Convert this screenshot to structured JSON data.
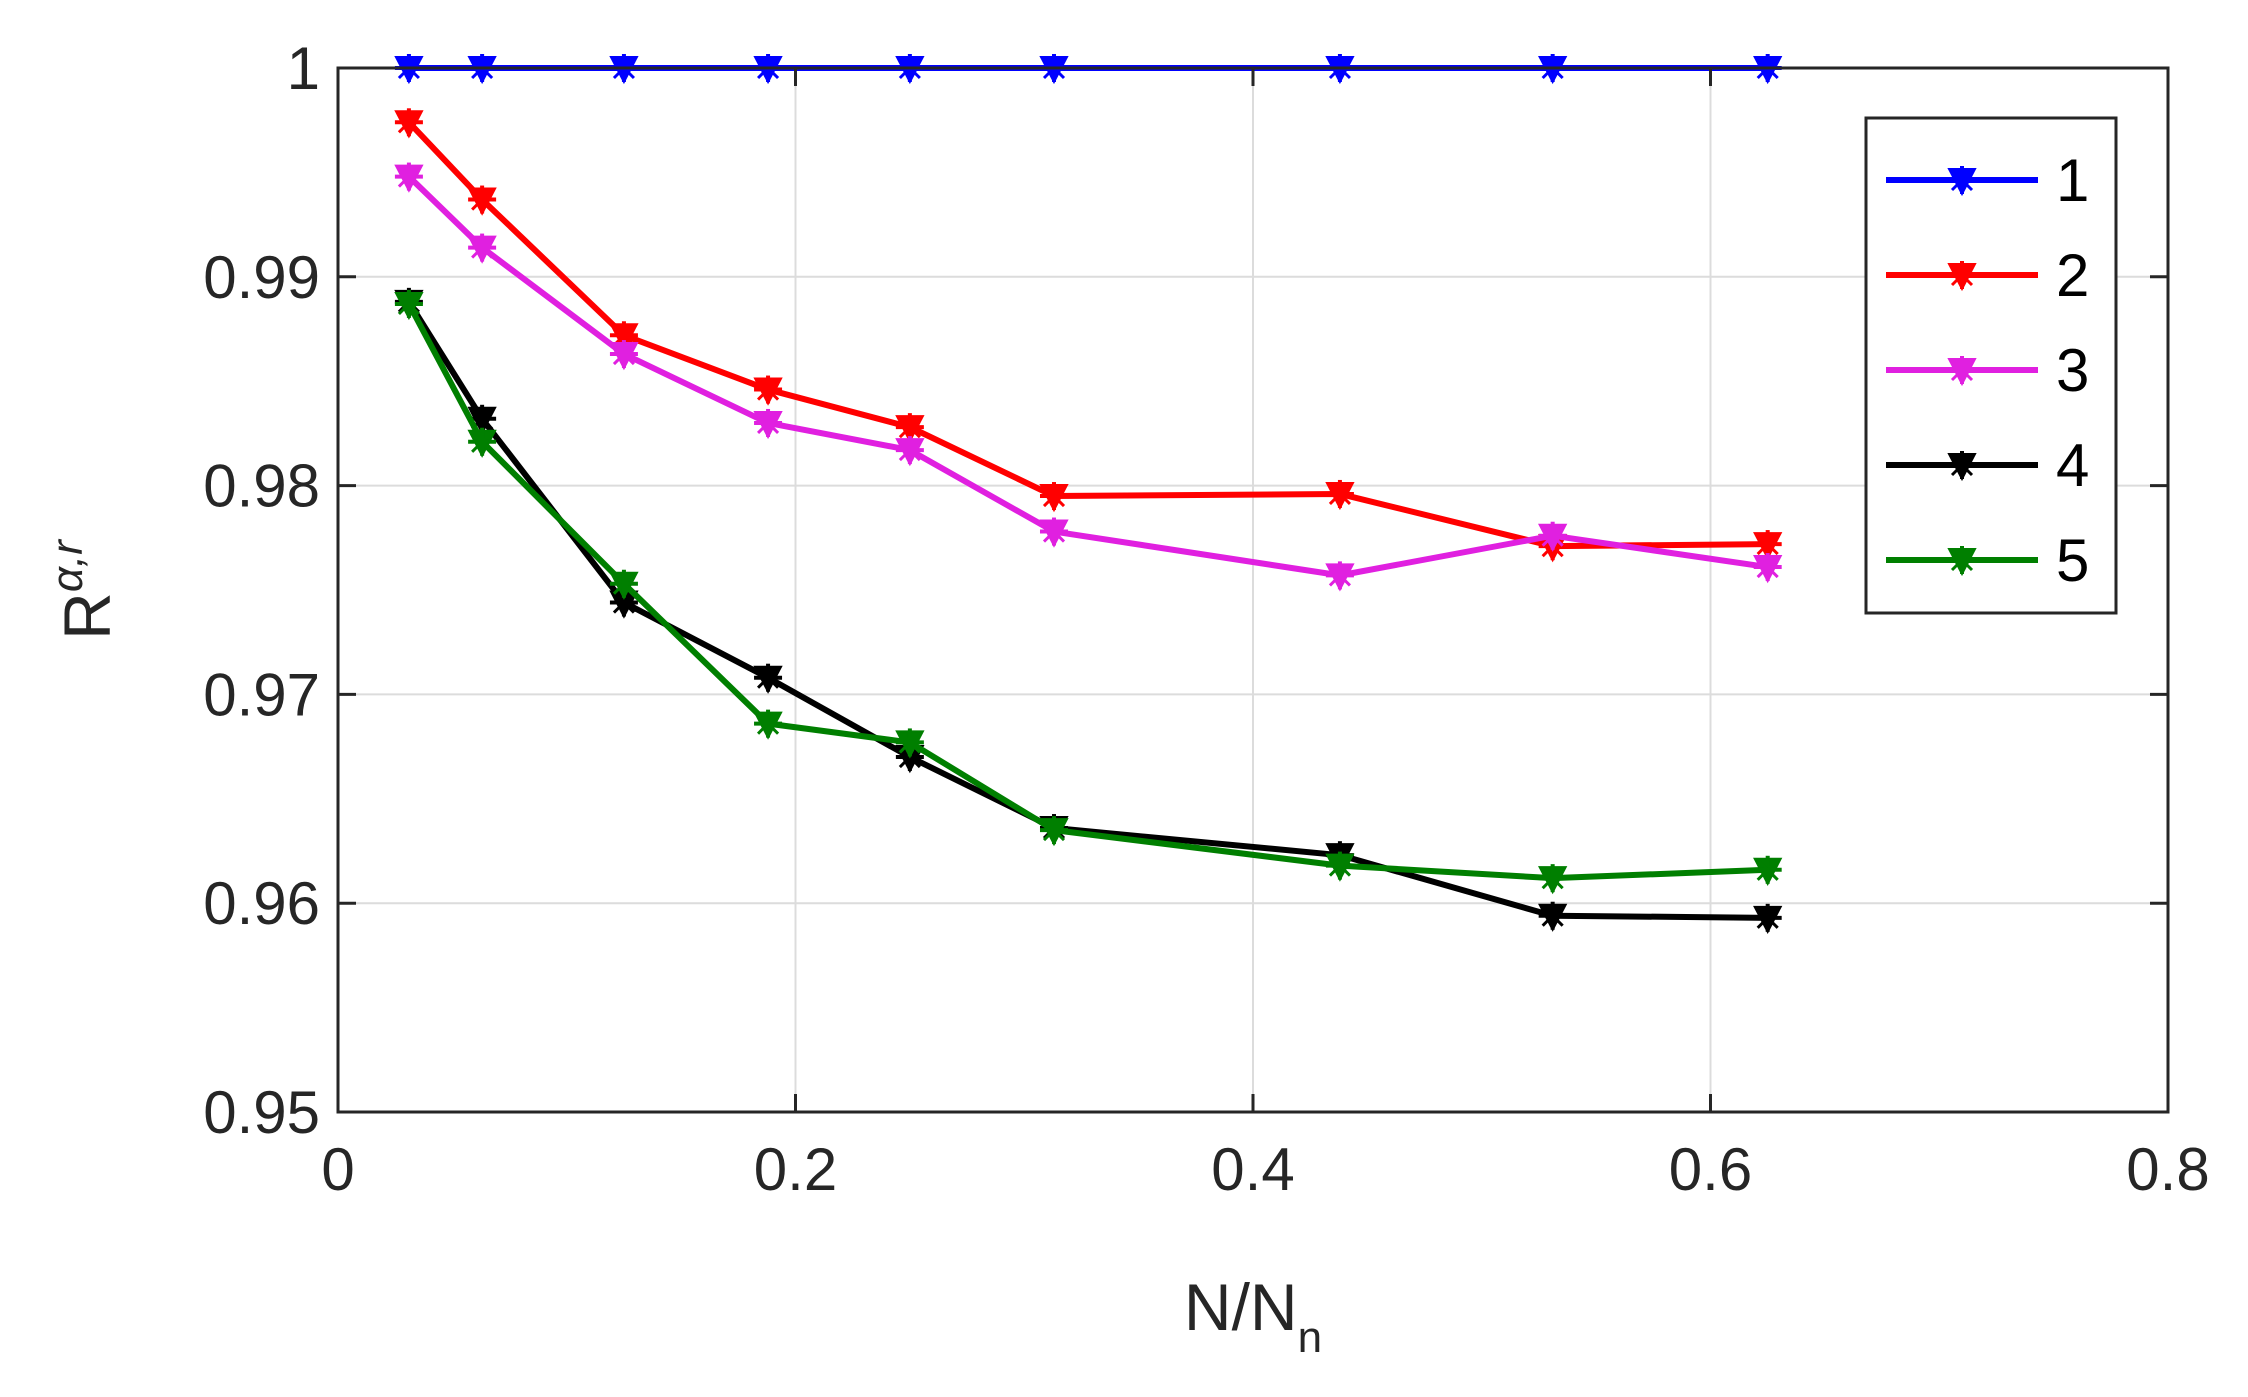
{
  "chart_data": {
    "type": "line",
    "xlabel": {
      "main": "N/N",
      "sub": "n"
    },
    "ylabel": {
      "main": "R",
      "sup": "α,r"
    },
    "xlim": [
      0,
      0.8
    ],
    "ylim": [
      0.95,
      1.0
    ],
    "xticks": [
      "0",
      "0.2",
      "0.4",
      "0.6",
      "0.8"
    ],
    "yticks": [
      "0.95",
      "0.96",
      "0.97",
      "0.98",
      "0.99",
      "1"
    ],
    "grid": true,
    "legend_position": "top-right",
    "x": [
      0.031,
      0.063,
      0.125,
      0.188,
      0.25,
      0.313,
      0.438,
      0.531,
      0.625
    ],
    "series": [
      {
        "name": "1",
        "color": "#0000ff",
        "values": [
          1.0,
          1.0,
          1.0,
          1.0,
          1.0,
          1.0,
          1.0,
          1.0,
          1.0
        ]
      },
      {
        "name": "2",
        "color": "#ff0000",
        "values": [
          0.9974,
          0.9937,
          0.9872,
          0.9846,
          0.9828,
          0.9795,
          0.9796,
          0.9771,
          0.9772
        ]
      },
      {
        "name": "3",
        "color": "#e020e0",
        "values": [
          0.9948,
          0.9914,
          0.9863,
          0.983,
          0.9817,
          0.9778,
          0.9757,
          0.9776,
          0.9761
        ]
      },
      {
        "name": "4",
        "color": "#000000",
        "values": [
          0.9888,
          0.9832,
          0.9744,
          0.9708,
          0.967,
          0.9636,
          0.9623,
          0.9594,
          0.9593
        ]
      },
      {
        "name": "5",
        "color": "#007f00",
        "values": [
          0.9887,
          0.9821,
          0.9753,
          0.9686,
          0.9677,
          0.9635,
          0.9618,
          0.9612,
          0.9616
        ]
      }
    ]
  }
}
